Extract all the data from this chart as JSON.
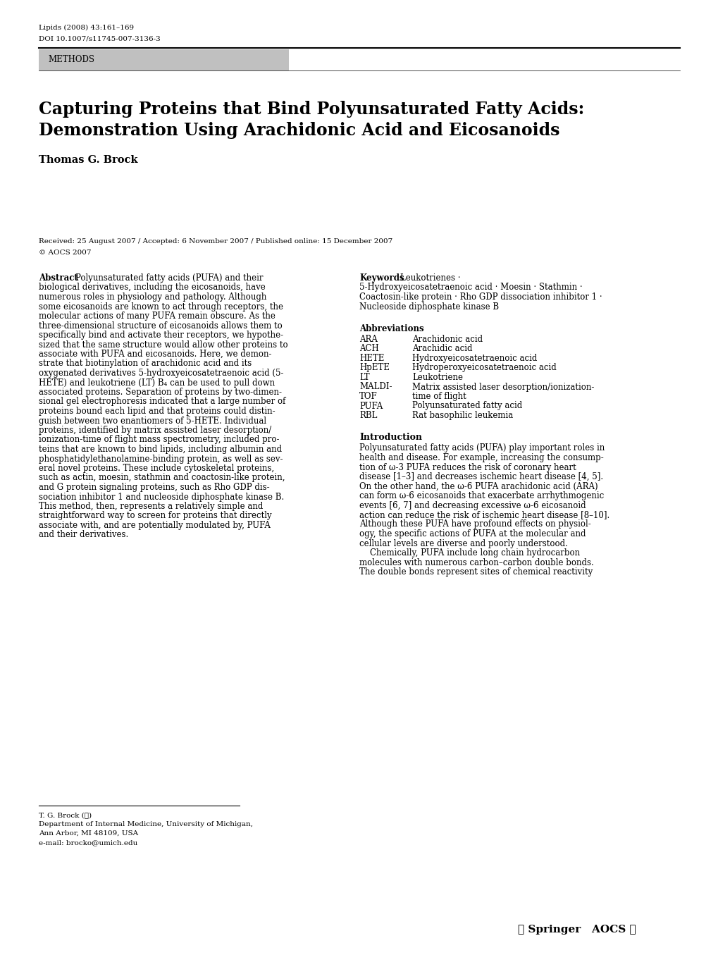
{
  "background_color": "#ffffff",
  "journal_line1": "Lipids (2008) 43:161–169",
  "journal_line2": "DOI 10.1007/s11745-007-3136-3",
  "methods_label": "METHODS",
  "title_line1": "Capturing Proteins that Bind Polyunsaturated Fatty Acids:",
  "title_line2": "Demonstration Using Arachidonic Acid and Eicosanoids",
  "author": "Thomas G. Brock",
  "received": "Received: 25 August 2007 / Accepted: 6 November 2007 / Published online: 15 December 2007",
  "copyright": "© AOCS 2007",
  "abstract_label": "Abstract",
  "keywords_label": "Keywords",
  "abbrev_title": "Abbreviations",
  "abbreviations": [
    [
      "ARA",
      "Arachidonic acid"
    ],
    [
      "ACH",
      "Arachidic acid"
    ],
    [
      "HETE",
      "Hydroxyeicosatetraenoic acid"
    ],
    [
      "HpETE",
      "Hydroperoxyeicosatetraenoic acid"
    ],
    [
      "LT",
      "Leukotriene"
    ],
    [
      "MALDI-",
      "Matrix assisted laser desorption/ionization-"
    ],
    [
      "TOF",
      "time of flight"
    ],
    [
      "PUFA",
      "Polyunsaturated fatty acid"
    ],
    [
      "RBL",
      "Rat basophilic leukemia"
    ]
  ],
  "intro_title": "Introduction",
  "footnote_author": "T. G. Brock (✉)",
  "footnote_dept": "Department of Internal Medicine, University of Michigan,",
  "footnote_city": "Ann Arbor, MI 48109, USA",
  "footnote_email": "e-mail: brocko@umich.edu",
  "methods_bg_color": "#c0c0c0",
  "methods_text_color": "#000000",
  "top_line_color": "#000000",
  "abstract_lines": [
    "Polyunsaturated fatty acids (PUFA) and their",
    "biological derivatives, including the eicosanoids, have",
    "numerous roles in physiology and pathology. Although",
    "some eicosanoids are known to act through receptors, the",
    "molecular actions of many PUFA remain obscure. As the",
    "three-dimensional structure of eicosanoids allows them to",
    "specifically bind and activate their receptors, we hypothe-",
    "sized that the same structure would allow other proteins to",
    "associate with PUFA and eicosanoids. Here, we demon-",
    "strate that biotinylation of arachidonic acid and its",
    "oxygenated derivatives 5-hydroxyeicosatetraenoic acid (5-",
    "HETE) and leukotriene (LT) B₄ can be used to pull down",
    "associated proteins. Separation of proteins by two-dimen-",
    "sional gel electrophoresis indicated that a large number of",
    "proteins bound each lipid and that proteins could distin-",
    "guish between two enantiomers of 5-HETE. Individual",
    "proteins, identified by matrix assisted laser desorption/",
    "ionization-time of flight mass spectrometry, included pro-",
    "teins that are known to bind lipids, including albumin and",
    "phosphatidylethanolamine-binding protein, as well as sev-",
    "eral novel proteins. These include cytoskeletal proteins,",
    "such as actin, moesin, stathmin and coactosin-like protein,",
    "and G protein signaling proteins, such as Rho GDP dis-",
    "sociation inhibitor 1 and nucleoside diphosphate kinase B.",
    "This method, then, represents a relatively simple and",
    "straightforward way to screen for proteins that directly",
    "associate with, and are potentially modulated by, PUFA",
    "and their derivatives."
  ],
  "keywords_lines": [
    [
      "bold",
      "Keywords  ",
      "normal",
      "Leukotrienes ·"
    ],
    [
      "normal",
      "5-Hydroxyeicosatetraenoic acid · Moesin · Stathmin ·",
      "",
      ""
    ],
    [
      "normal",
      "Coactosin-like protein · Rho GDP dissociation inhibitor 1 ·",
      "",
      ""
    ],
    [
      "normal",
      "Nucleoside diphosphate kinase B",
      "",
      ""
    ]
  ],
  "intro_lines": [
    "Polyunsaturated fatty acids (PUFA) play important roles in",
    "health and disease. For example, increasing the consump-",
    "tion of ω-3 PUFA reduces the risk of coronary heart",
    "disease [1–3] and decreases ischemic heart disease [4, 5].",
    "On the other hand, the ω-6 PUFA arachidonic acid (ARA)",
    "can form ω-6 eicosanoids that exacerbate arrhythmogenic",
    "events [6, 7] and decreasing excessive ω-6 eicosanoid",
    "action can reduce the risk of ischemic heart disease [8–10].",
    "Although these PUFA have profound effects on physiol-",
    "ogy, the specific actions of PUFA at the molecular and",
    "cellular levels are diverse and poorly understood.",
    "    Chemically, PUFA include long chain hydrocarbon",
    "molecules with numerous carbon–carbon double bonds.",
    "The double bonds represent sites of chemical reactivity"
  ]
}
